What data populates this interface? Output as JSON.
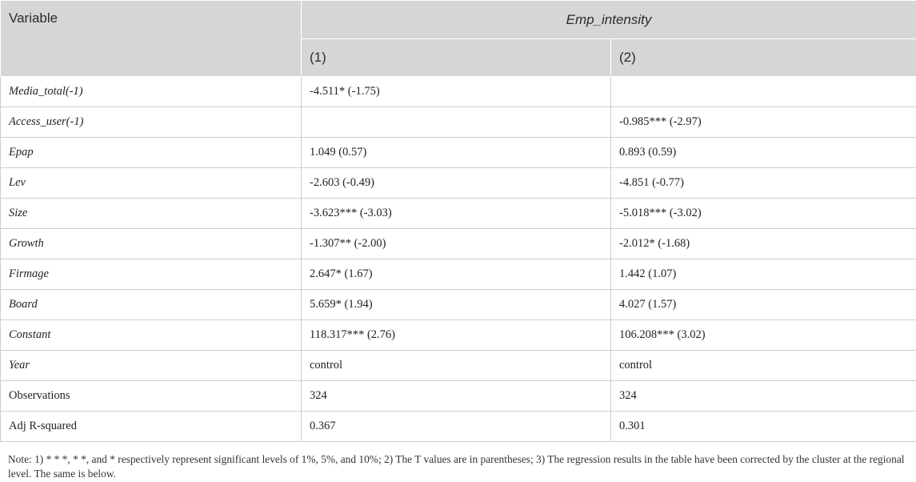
{
  "table": {
    "var_header": "Variable",
    "group_header": "Emp_intensity",
    "col_headers": [
      "(1)",
      "(2)"
    ],
    "rows": [
      {
        "var": "Media_total(-1)",
        "italic": true,
        "c1": "-4.511* (-1.75)",
        "c2": ""
      },
      {
        "var": "Access_user(-1)",
        "italic": true,
        "c1": "",
        "c2": "-0.985*** (-2.97)"
      },
      {
        "var": "Epap",
        "italic": true,
        "c1": "1.049 (0.57)",
        "c2": "0.893 (0.59)"
      },
      {
        "var": "Lev",
        "italic": true,
        "c1": "-2.603 (-0.49)",
        "c2": "-4.851 (-0.77)"
      },
      {
        "var": "Size",
        "italic": true,
        "c1": "-3.623*** (-3.03)",
        "c2": "-5.018*** (-3.02)"
      },
      {
        "var": "Growth",
        "italic": true,
        "c1": "-1.307** (-2.00)",
        "c2": "-2.012* (-1.68)"
      },
      {
        "var": "Firmage",
        "italic": true,
        "c1": "2.647* (1.67)",
        "c2": "1.442 (1.07)"
      },
      {
        "var": "Board",
        "italic": true,
        "c1": "5.659* (1.94)",
        "c2": "4.027 (1.57)"
      },
      {
        "var": "Constant",
        "italic": true,
        "c1": "118.317*** (2.76)",
        "c2": "106.208*** (3.02)"
      },
      {
        "var": "Year",
        "italic": true,
        "c1": "control",
        "c2": "control"
      },
      {
        "var": "Observations",
        "italic": false,
        "c1": "324",
        "c2": "324"
      },
      {
        "var": "Adj R-squared",
        "italic": false,
        "c1": "0.367",
        "c2": "0.301"
      }
    ]
  },
  "note": "Note: 1) * * *, * *, and * respectively represent significant levels of 1%, 5%, and 10%; 2) The T values are in parentheses; 3) The regression results in the table have been corrected by the cluster at the regional level. The same is below."
}
